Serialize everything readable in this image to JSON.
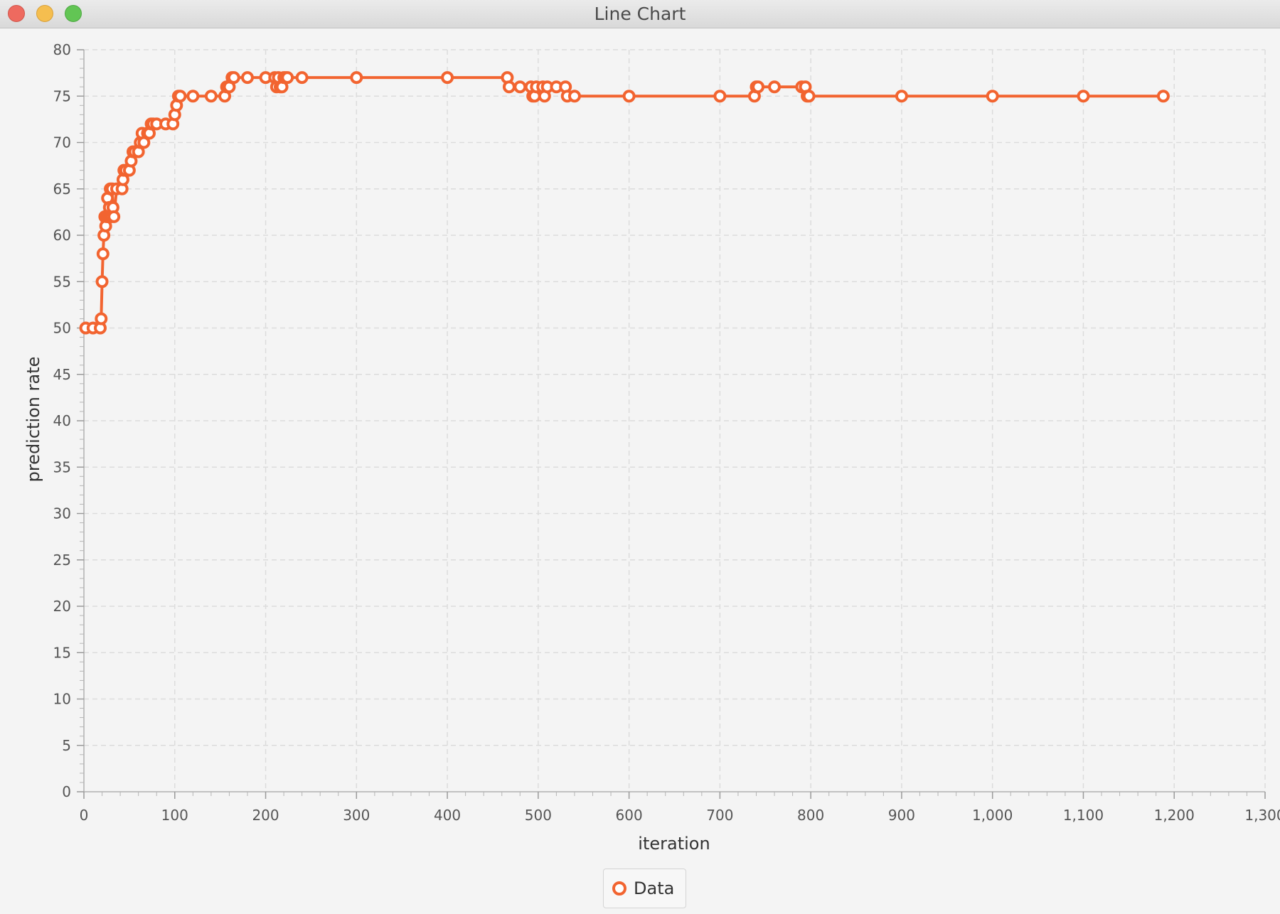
{
  "window": {
    "title": "Line Chart"
  },
  "colors": {
    "series": "#f26430",
    "grid": "#dcdcdc",
    "background": "#f4f4f4"
  },
  "chart_data": {
    "type": "line",
    "xlabel": "iteration",
    "ylabel": "prediction rate",
    "xlim": [
      0,
      1300
    ],
    "ylim": [
      0,
      80
    ],
    "x_ticks": [
      0,
      100,
      200,
      300,
      400,
      500,
      600,
      700,
      800,
      900,
      1000,
      1100,
      1200,
      1300
    ],
    "x_tick_labels": [
      "0",
      "100",
      "200",
      "300",
      "400",
      "500",
      "600",
      "700",
      "800",
      "900",
      "1,000",
      "1,100",
      "1,200",
      "1,300"
    ],
    "y_ticks": [
      0,
      5,
      10,
      15,
      20,
      25,
      30,
      35,
      40,
      45,
      50,
      55,
      60,
      65,
      70,
      75,
      80
    ],
    "grid": true,
    "legend_position": "bottom-center",
    "series": [
      {
        "name": "Data",
        "marker": "open-circle",
        "color": "#f26430",
        "x": [
          2,
          10,
          18,
          19,
          20,
          21,
          22,
          23,
          24,
          25,
          26,
          27,
          28,
          29,
          30,
          31,
          32,
          33,
          36,
          42,
          43,
          44,
          46,
          50,
          52,
          54,
          56,
          60,
          62,
          64,
          66,
          70,
          72,
          74,
          76,
          80,
          90,
          98,
          100,
          102,
          104,
          106,
          120,
          140,
          155,
          157,
          160,
          163,
          165,
          180,
          200,
          210,
          212,
          214,
          216,
          218,
          220,
          222,
          224,
          240,
          300,
          400,
          466,
          468,
          480,
          492,
          494,
          496,
          498,
          505,
          507,
          510,
          520,
          530,
          532,
          540,
          600,
          700,
          738,
          740,
          742,
          760,
          790,
          794,
          796,
          798,
          900,
          1000,
          1100,
          1188
        ],
        "y": [
          50,
          50,
          50,
          51,
          55,
          58,
          60,
          62,
          61,
          62,
          64,
          62,
          63,
          65,
          62,
          65,
          63,
          62,
          65,
          65,
          66,
          67,
          67,
          67,
          68,
          69,
          69,
          69,
          70,
          71,
          70,
          71,
          71,
          72,
          72,
          72,
          72,
          72,
          73,
          74,
          75,
          75,
          75,
          75,
          75,
          76,
          76,
          77,
          77,
          77,
          77,
          77,
          76,
          77,
          76,
          76,
          77,
          77,
          77,
          77,
          77,
          77,
          77,
          76,
          76,
          76,
          75,
          75,
          76,
          76,
          75,
          76,
          76,
          76,
          75,
          75,
          75,
          75,
          75,
          76,
          76,
          76,
          76,
          76,
          75,
          75,
          75,
          75,
          75,
          75
        ]
      }
    ]
  }
}
